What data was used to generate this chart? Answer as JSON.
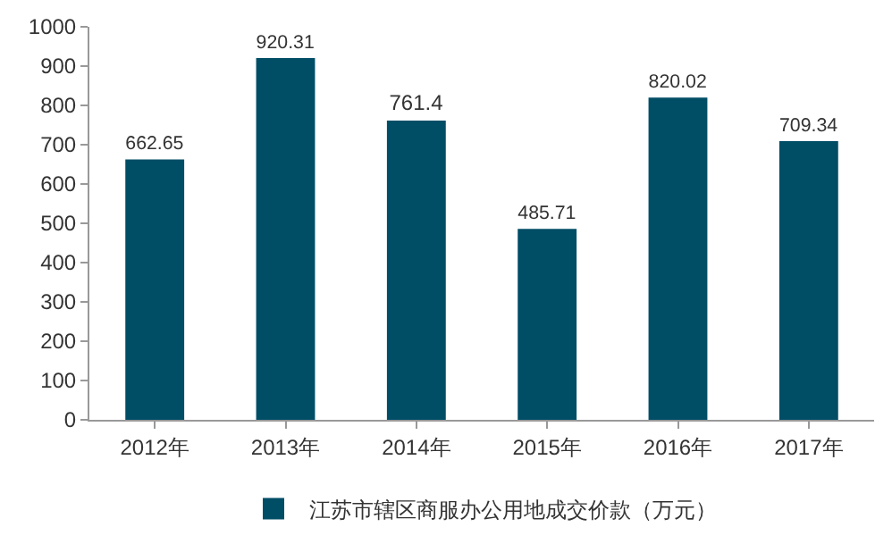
{
  "chart_data": {
    "type": "bar",
    "categories": [
      "2012年",
      "2013年",
      "2014年",
      "2015年",
      "2016年",
      "2017年"
    ],
    "series": [
      {
        "name": "江苏市辖区商服办公用地成交价款（万元）",
        "color": "#004d66",
        "values": [
          662.65,
          920.31,
          761.4,
          485.71,
          820.02,
          709.34
        ]
      }
    ],
    "ylim": [
      0,
      1000
    ],
    "yticks": [
      0,
      100,
      200,
      300,
      400,
      500,
      600,
      700,
      800,
      900,
      1000
    ],
    "data_labels": true,
    "legend": "bottom",
    "grid": false
  }
}
